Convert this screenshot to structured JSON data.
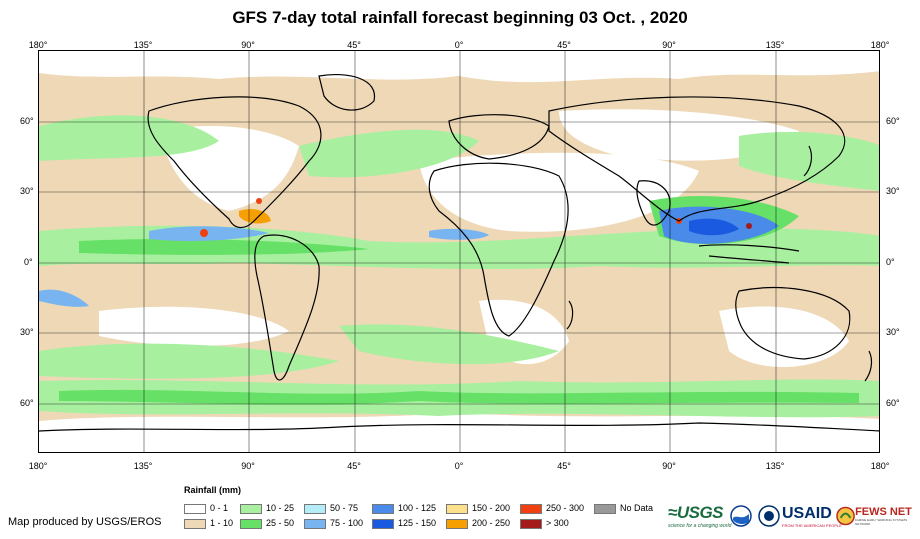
{
  "title": "GFS 7-day total rainfall forecast beginning 03 Oct. , 2020",
  "lon_labels": [
    "180°",
    "135°",
    "90°",
    "45°",
    "0°",
    "45°",
    "90°",
    "135°",
    "180°"
  ],
  "lat_labels": [
    "60°",
    "30°",
    "0°",
    "30°",
    "60°"
  ],
  "legend": {
    "title": "Rainfall (mm)",
    "items": [
      {
        "label": "0 - 1",
        "color": "#ffffff"
      },
      {
        "label": "1 - 10",
        "color": "#eed8b6"
      },
      {
        "label": "10 - 25",
        "color": "#a8f0a0"
      },
      {
        "label": "25 - 50",
        "color": "#66e066"
      },
      {
        "label": "50 - 75",
        "color": "#b4ecf8"
      },
      {
        "label": "75 - 100",
        "color": "#78b4f0"
      },
      {
        "label": "100 - 125",
        "color": "#4a8ae8"
      },
      {
        "label": "125 - 150",
        "color": "#1a5ae0"
      },
      {
        "label": "150 - 200",
        "color": "#fde08c"
      },
      {
        "label": "200 - 250",
        "color": "#f5a000"
      },
      {
        "label": "250 - 300",
        "color": "#ee4010"
      },
      {
        "label": "> 300",
        "color": "#a51a1a"
      },
      {
        "label": "No Data",
        "color": "#999999"
      }
    ]
  },
  "credit": "Map produced by USGS/EROS",
  "logos": {
    "usgs": "≈USGS",
    "usgs_tagline": "science for a changing world",
    "usaid": "USAID",
    "usaid_tagline": "FROM THE AMERICAN PEOPLE",
    "fews": "FEWS NET",
    "fews_tagline": "FAMINE EARLY WARNING SYSTEMS NETWORK"
  }
}
